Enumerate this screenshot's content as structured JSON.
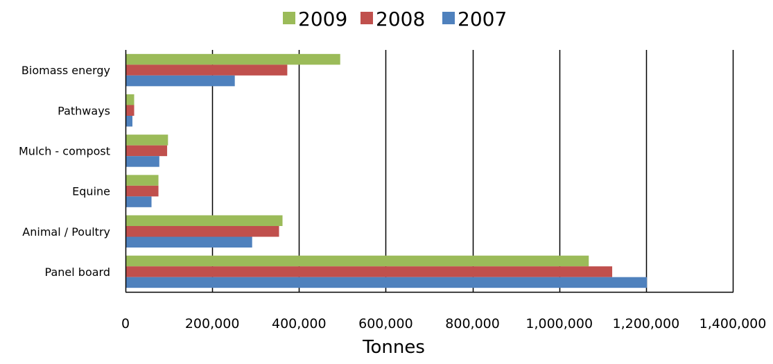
{
  "chart_data": {
    "type": "bar",
    "orientation": "horizontal",
    "categories": [
      "Biomass energy",
      "Pathways",
      "Mulch - compost",
      "Equine",
      "Animal / Poultry",
      "Panel board"
    ],
    "series": [
      {
        "name": "2009",
        "color": "#9bbb59",
        "values": [
          495000,
          20000,
          98000,
          76000,
          362000,
          1068000
        ]
      },
      {
        "name": "2008",
        "color": "#c0504d",
        "values": [
          373000,
          20000,
          96000,
          76000,
          354000,
          1122000
        ]
      },
      {
        "name": "2007",
        "color": "#4f81bd",
        "values": [
          252000,
          16000,
          78000,
          60000,
          292000,
          1202000
        ]
      }
    ],
    "xlabel": "Tonnes",
    "ylabel": "",
    "xlim": [
      0,
      1400000
    ],
    "ticks": [
      "0",
      "200,000",
      "400,000",
      "600,000",
      "800,000",
      "1,000,000",
      "1,200,000",
      "1,400,000"
    ],
    "grid": true,
    "legend_position": "top-center"
  }
}
